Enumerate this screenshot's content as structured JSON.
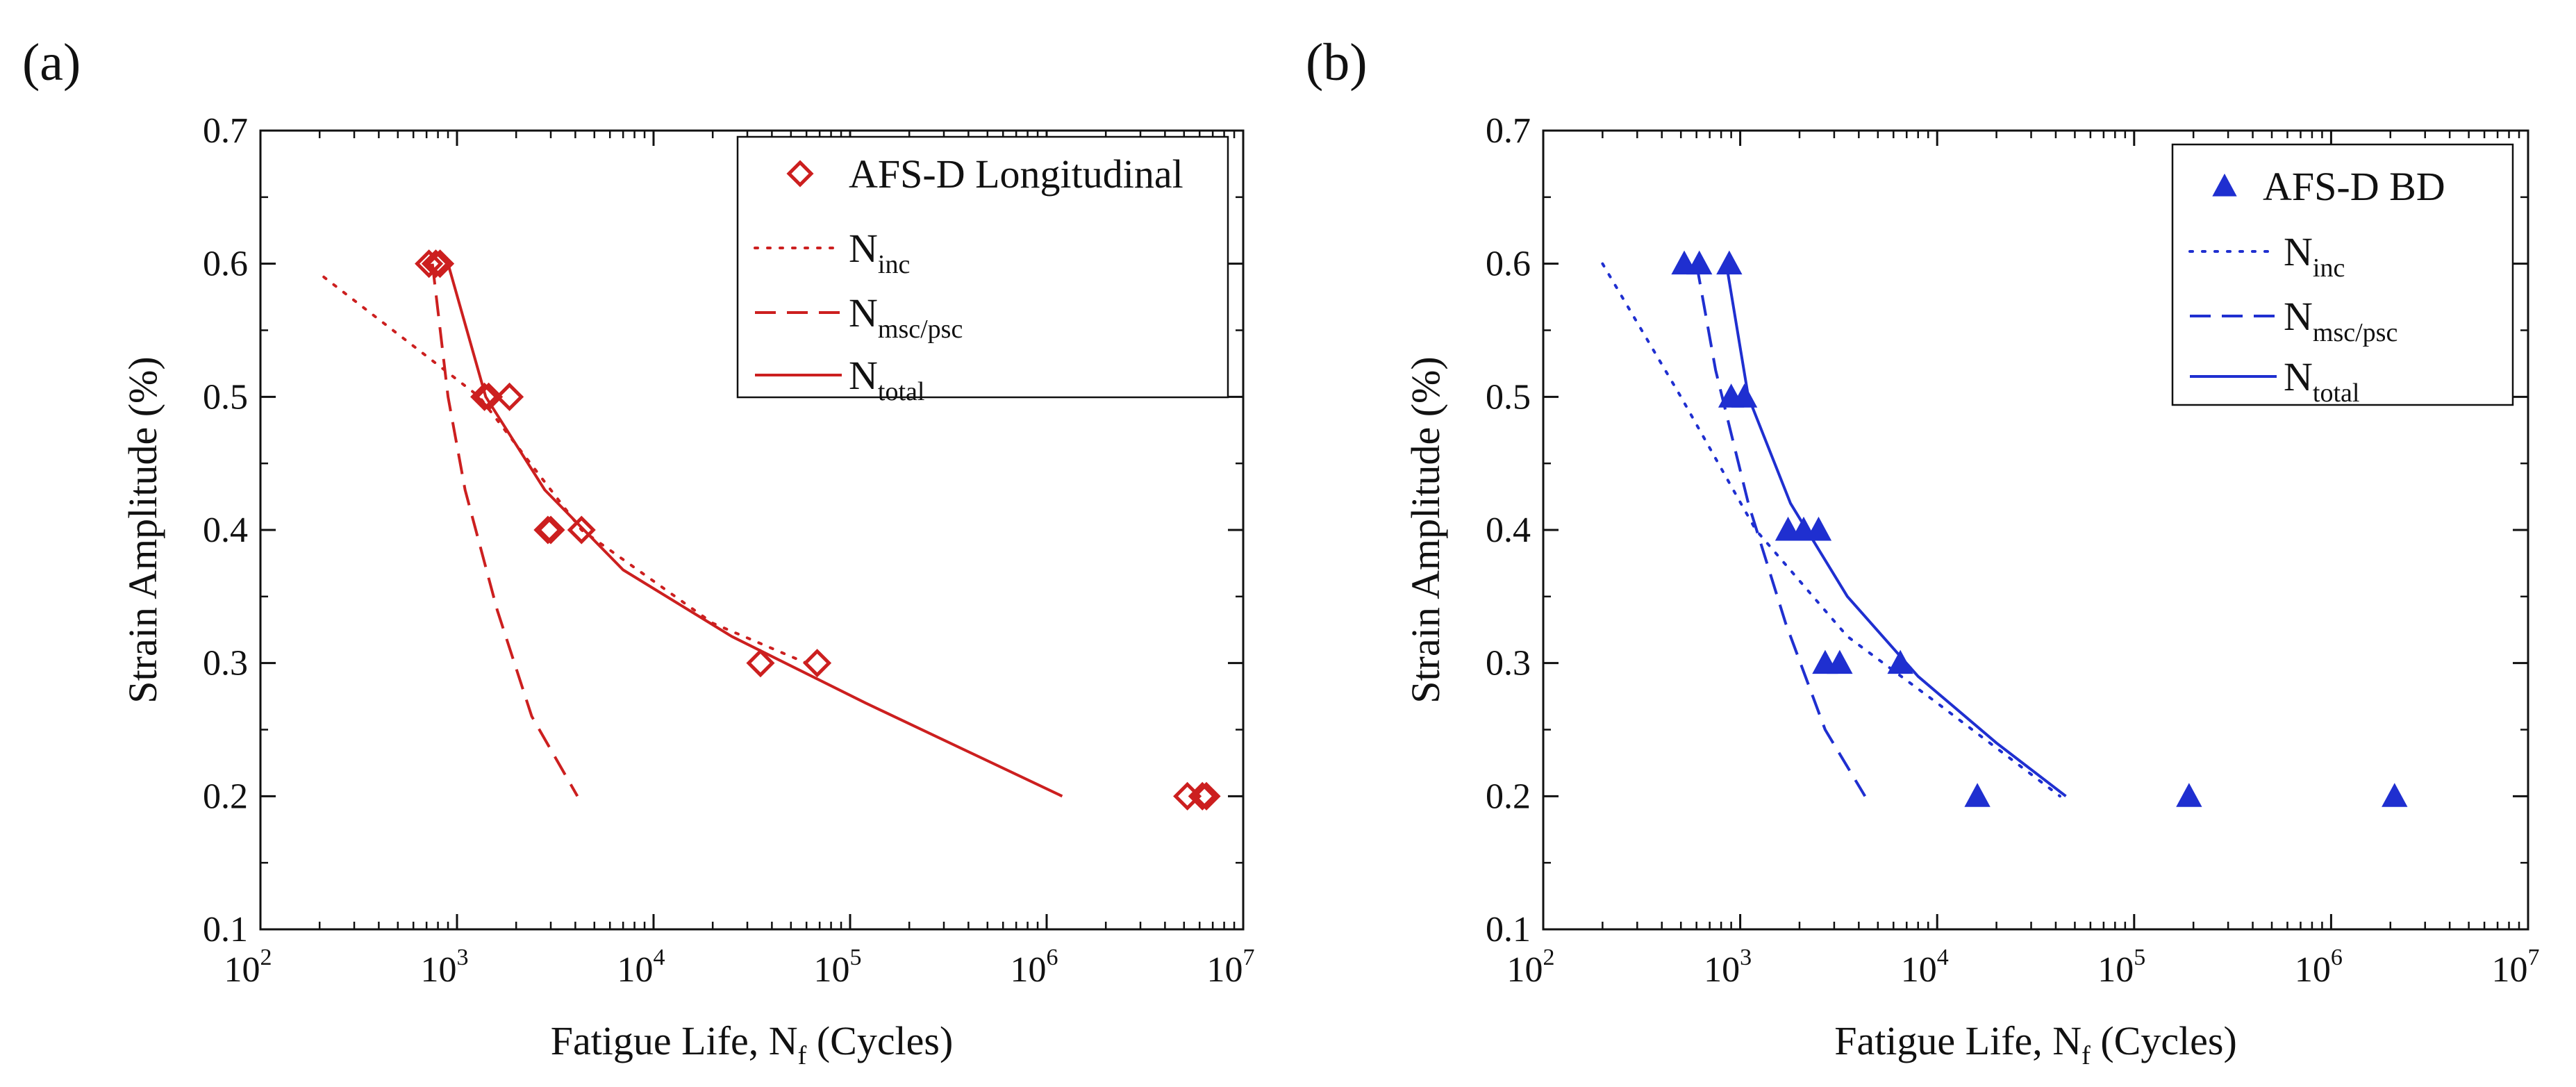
{
  "figure": {
    "panels": [
      "(a)",
      "(b)"
    ]
  },
  "chart_data": [
    {
      "type": "scatter",
      "panel_label": "(a)",
      "title": "",
      "xlabel": {
        "main": "Fatigue Life, N",
        "sub": "f",
        "rest": " (Cycles)"
      },
      "ylabel": "Strain Amplitude (%)",
      "xscale": "log",
      "xlim": [
        100,
        10000000
      ],
      "ylim": [
        0.1,
        0.7
      ],
      "xticks": [
        {
          "base": "10",
          "exp": "2",
          "value": 100
        },
        {
          "base": "10",
          "exp": "3",
          "value": 1000
        },
        {
          "base": "10",
          "exp": "4",
          "value": 10000
        },
        {
          "base": "10",
          "exp": "5",
          "value": 100000
        },
        {
          "base": "10",
          "exp": "6",
          "value": 1000000
        },
        {
          "base": "10",
          "exp": "7",
          "value": 10000000
        }
      ],
      "yticks": [
        "0.1",
        "0.2",
        "0.3",
        "0.4",
        "0.5",
        "0.6",
        "0.7"
      ],
      "color": "#cc1f1f",
      "legend_position": "top-right",
      "legend": [
        {
          "main": "AFS-D Longitudinal",
          "sub": "",
          "style": "diamond"
        },
        {
          "main": "N",
          "sub": "inc",
          "style": "dotted"
        },
        {
          "main": "N",
          "sub": "msc/psc",
          "style": "dashed"
        },
        {
          "main": "N",
          "sub": "total",
          "style": "solid"
        }
      ],
      "scatter": {
        "name": "AFS-D Longitudinal",
        "marker": "diamond",
        "x": [
          720,
          780,
          820,
          1380,
          1450,
          1850,
          2900,
          3000,
          4300,
          35000,
          68000,
          5200000,
          6200000,
          6500000
        ],
        "y": [
          0.6,
          0.6,
          0.6,
          0.5,
          0.5,
          0.5,
          0.4,
          0.4,
          0.4,
          0.3,
          0.3,
          0.2,
          0.2,
          0.2
        ]
      },
      "series": [
        {
          "name": "N_inc",
          "style": "dotted",
          "x": [
            210,
            1300,
            4300,
            20000,
            60000
          ],
          "y": [
            0.59,
            0.5,
            0.4,
            0.33,
            0.3
          ]
        },
        {
          "name": "N_msc/psc",
          "style": "dashed",
          "x": [
            750,
            900,
            1100,
            1600,
            2400,
            4100
          ],
          "y": [
            0.6,
            0.5,
            0.43,
            0.34,
            0.26,
            0.2
          ]
        },
        {
          "name": "N_total",
          "style": "solid",
          "x": [
            900,
            1400,
            2800,
            7000,
            25000,
            120000,
            1200000
          ],
          "y": [
            0.6,
            0.5,
            0.43,
            0.37,
            0.32,
            0.27,
            0.2
          ]
        }
      ]
    },
    {
      "type": "scatter",
      "panel_label": "(b)",
      "title": "",
      "xlabel": {
        "main": "Fatigue Life, N",
        "sub": "f",
        "rest": " (Cycles)"
      },
      "ylabel": "Strain Amplitude (%)",
      "xscale": "log",
      "xlim": [
        100,
        10000000
      ],
      "ylim": [
        0.1,
        0.7
      ],
      "xticks": [
        {
          "base": "10",
          "exp": "2",
          "value": 100
        },
        {
          "base": "10",
          "exp": "3",
          "value": 1000
        },
        {
          "base": "10",
          "exp": "4",
          "value": 10000
        },
        {
          "base": "10",
          "exp": "5",
          "value": 100000
        },
        {
          "base": "10",
          "exp": "6",
          "value": 1000000
        },
        {
          "base": "10",
          "exp": "7",
          "value": 10000000
        }
      ],
      "yticks": [
        "0.1",
        "0.2",
        "0.3",
        "0.4",
        "0.5",
        "0.6",
        "0.7"
      ],
      "color": "#1f2fd0",
      "legend_position": "top-right",
      "legend": [
        {
          "main": "AFS-D BD",
          "sub": "",
          "style": "triangle"
        },
        {
          "main": "N",
          "sub": "inc",
          "style": "dotted"
        },
        {
          "main": "N",
          "sub": "msc/psc",
          "style": "dashed"
        },
        {
          "main": "N",
          "sub": "total",
          "style": "solid"
        }
      ],
      "scatter": {
        "name": "AFS-D BD",
        "marker": "triangle",
        "x": [
          520,
          620,
          880,
          900,
          1050,
          1750,
          2100,
          2500,
          2700,
          3200,
          6500,
          16000,
          190000,
          2100000
        ],
        "y": [
          0.6,
          0.6,
          0.6,
          0.5,
          0.5,
          0.4,
          0.4,
          0.4,
          0.3,
          0.3,
          0.3,
          0.2,
          0.2,
          0.2
        ]
      },
      "series": [
        {
          "name": "N_inc",
          "style": "dotted",
          "x": [
            200,
            500,
            1200,
            3500,
            10000,
            42000
          ],
          "y": [
            0.6,
            0.5,
            0.4,
            0.32,
            0.27,
            0.2
          ]
        },
        {
          "name": "N_msc/psc",
          "style": "dashed",
          "x": [
            600,
            750,
            1100,
            1700,
            2700,
            4300
          ],
          "y": [
            0.6,
            0.52,
            0.42,
            0.33,
            0.25,
            0.2
          ]
        },
        {
          "name": "N_total",
          "style": "solid",
          "x": [
            850,
            1100,
            1800,
            3500,
            8000,
            20000,
            45000
          ],
          "y": [
            0.6,
            0.5,
            0.42,
            0.35,
            0.29,
            0.24,
            0.2
          ]
        }
      ]
    }
  ]
}
